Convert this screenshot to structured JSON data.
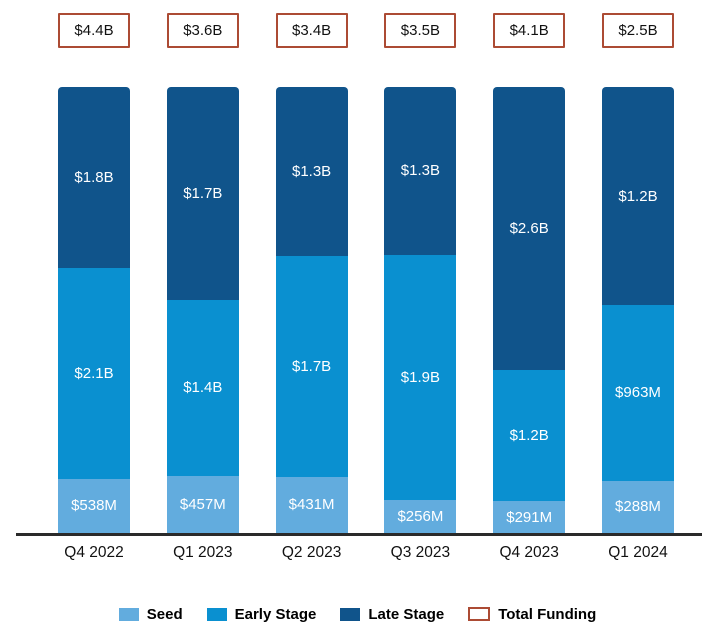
{
  "chart_data": {
    "type": "bar",
    "subtype": "stacked-proportional-equal-height",
    "title": "",
    "xlabel": "",
    "ylabel": "",
    "grid": false,
    "legend_position": "bottom-center",
    "categories": [
      "Q4 2022",
      "Q1 2023",
      "Q2 2023",
      "Q3 2023",
      "Q4 2023",
      "Q1 2024"
    ],
    "totals": {
      "labels": [
        "$4.4B",
        "$3.6B",
        "$3.4B",
        "$3.5B",
        "$4.1B",
        "$2.5B"
      ],
      "values_billions": [
        4.4,
        3.6,
        3.4,
        3.5,
        4.1,
        2.5
      ]
    },
    "series": [
      {
        "key": "seed",
        "name": "Seed",
        "values_millions": [
          538,
          457,
          431,
          256,
          291,
          288
        ],
        "labels": [
          "$538M",
          "$457M",
          "$431M",
          "$256M",
          "$291M",
          "$288M"
        ]
      },
      {
        "key": "early",
        "name": "Early Stage",
        "values_millions": [
          2100,
          1400,
          1700,
          1900,
          1200,
          963
        ],
        "labels": [
          "$2.1B",
          "$1.4B",
          "$1.7B",
          "$1.9B",
          "$1.2B",
          "$963M"
        ]
      },
      {
        "key": "late",
        "name": "Late Stage",
        "values_millions": [
          1800,
          1700,
          1300,
          1300,
          2600,
          1200
        ],
        "labels": [
          "$1.8B",
          "$1.7B",
          "$1.3B",
          "$1.3B",
          "$2.6B",
          "$1.2B"
        ]
      }
    ],
    "legend": [
      {
        "label": "Seed",
        "swatch": "seed"
      },
      {
        "label": "Early Stage",
        "swatch": "early"
      },
      {
        "label": "Late Stage",
        "swatch": "late"
      },
      {
        "label": "Total Funding",
        "swatch": "total"
      }
    ],
    "colors": {
      "seed": "#62ACDE",
      "early": "#0A90D0",
      "late": "#10548B",
      "total_border": "#AC4B34",
      "axis": "#2A2A2A",
      "bar_label_text": "#FFFFFF",
      "axis_label_text": "#111111"
    }
  }
}
